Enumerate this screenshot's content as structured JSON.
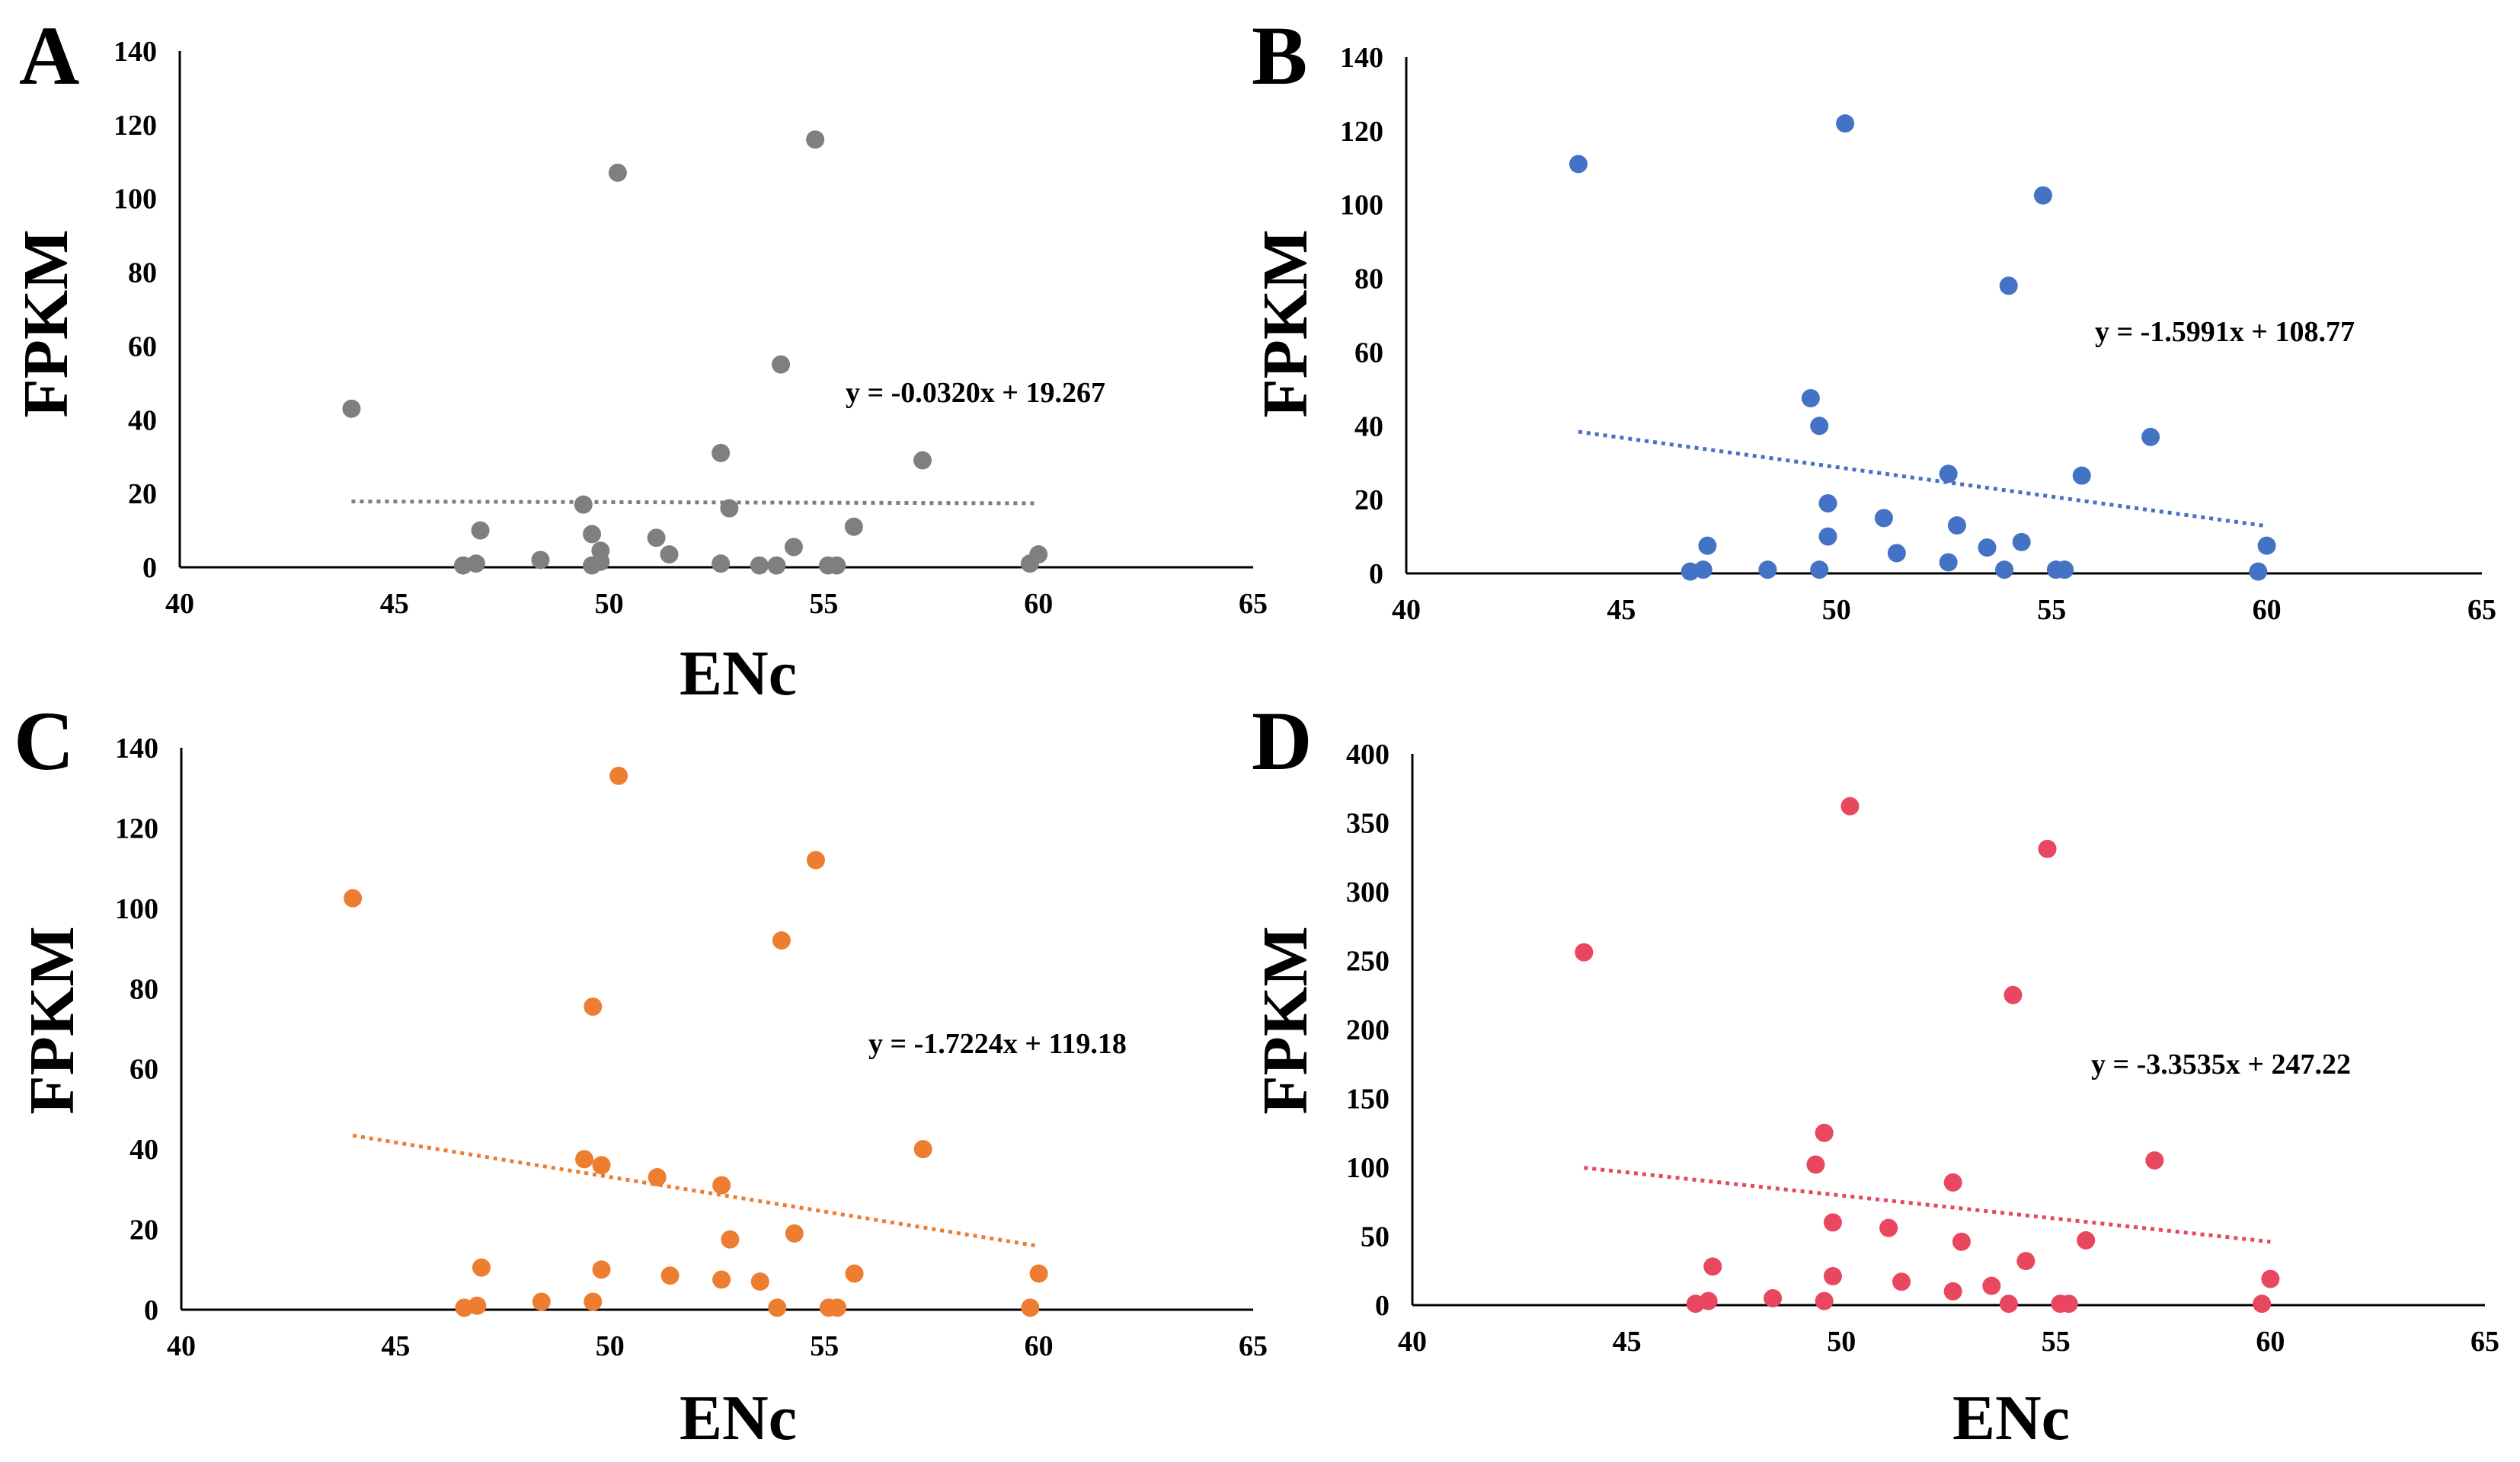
{
  "chart_data": [
    {
      "type": "scatter",
      "panel": "A",
      "color": "#7f7f7f",
      "xlabel": "ENc",
      "ylabel": "FPKM",
      "xlim": [
        40,
        65
      ],
      "ylim": [
        0,
        140
      ],
      "xticks": [
        40,
        45,
        50,
        55,
        60,
        65
      ],
      "yticks": [
        0,
        20,
        40,
        60,
        80,
        100,
        120,
        140
      ],
      "equation": "y = -0.0320x + 19.267",
      "trendline": {
        "slope": -0.032,
        "intercept": 19.267,
        "x_range": [
          44,
          60
        ]
      },
      "x": [
        44,
        46.6,
        46.9,
        47,
        48.4,
        49.4,
        49.6,
        49.6,
        49.8,
        49.8,
        50.2,
        51.1,
        51.4,
        52.6,
        52.6,
        52.8,
        53.5,
        53.9,
        54,
        54.3,
        54.8,
        55.1,
        55.3,
        55.7,
        57.3,
        59.8,
        60
      ],
      "y": [
        43,
        0.5,
        1,
        10,
        2,
        17,
        0.5,
        9,
        1.5,
        4.5,
        107,
        8,
        3.5,
        31,
        1,
        16,
        0.5,
        0.5,
        55,
        5.5,
        116,
        0.5,
        0.5,
        11,
        29,
        1,
        3.5
      ]
    },
    {
      "type": "scatter",
      "panel": "B",
      "color": "#4472c4",
      "xlabel": "ENc",
      "ylabel": "FPKM",
      "xlim": [
        40,
        65
      ],
      "ylim": [
        0,
        140
      ],
      "xticks": [
        40,
        45,
        50,
        55,
        60,
        65
      ],
      "yticks": [
        0,
        20,
        40,
        60,
        80,
        100,
        120,
        140
      ],
      "equation": "y = -1.5991x + 108.77",
      "trendline": {
        "slope": -1.5991,
        "intercept": 108.77,
        "x_range": [
          44,
          60
        ]
      },
      "x": [
        44,
        46.6,
        46.9,
        47,
        48.4,
        49.4,
        49.6,
        49.6,
        49.8,
        49.8,
        50.2,
        51.1,
        51.4,
        52.6,
        52.6,
        52.8,
        53.5,
        53.9,
        54,
        54.3,
        54.8,
        55.1,
        55.3,
        55.7,
        57.3,
        59.8,
        60
      ],
      "y": [
        111,
        0.5,
        1,
        7.5,
        1,
        47.5,
        1,
        40,
        19,
        10,
        122,
        15,
        5.5,
        27,
        3,
        13,
        7,
        1,
        78,
        8.5,
        102.5,
        1,
        1,
        26.5,
        37,
        0.5,
        7.5
      ]
    },
    {
      "type": "scatter",
      "panel": "C",
      "color": "#ed7d31",
      "xlabel": "ENc",
      "ylabel": "FPKM",
      "xlim": [
        40,
        65
      ],
      "ylim": [
        0,
        140
      ],
      "xticks": [
        40,
        45,
        50,
        55,
        60,
        65
      ],
      "yticks": [
        0,
        20,
        40,
        60,
        80,
        100,
        120,
        140
      ],
      "equation": "y = -1.7224x + 119.18",
      "trendline": {
        "slope": -1.7224,
        "intercept": 119.18,
        "x_range": [
          44,
          60
        ]
      },
      "x": [
        44,
        46.6,
        46.9,
        47,
        48.4,
        49.4,
        49.6,
        49.6,
        49.8,
        49.8,
        50.2,
        51.1,
        51.4,
        52.6,
        52.6,
        52.8,
        53.5,
        53.9,
        54,
        54.3,
        54.8,
        55.1,
        55.3,
        55.7,
        57.3,
        59.8,
        60
      ],
      "y": [
        102.5,
        0.5,
        1,
        10.5,
        2,
        37.5,
        2,
        75.5,
        10,
        36,
        133,
        33,
        8.5,
        31,
        7.5,
        17.5,
        7,
        0.5,
        92,
        19,
        112,
        0.5,
        0.5,
        9,
        40,
        0.5,
        9
      ]
    },
    {
      "type": "scatter",
      "panel": "D",
      "color": "#e8475f",
      "xlabel": "ENc",
      "ylabel": "FPKM",
      "xlim": [
        40,
        65
      ],
      "ylim": [
        0,
        400
      ],
      "xticks": [
        40,
        45,
        50,
        55,
        60,
        65
      ],
      "yticks": [
        0,
        50,
        100,
        150,
        200,
        250,
        300,
        350,
        400
      ],
      "equation": "y = -3.3535x + 247.22",
      "trendline": {
        "slope": -3.3535,
        "intercept": 247.22,
        "x_range": [
          44,
          60
        ]
      },
      "x": [
        44,
        46.6,
        46.9,
        47,
        48.4,
        49.4,
        49.6,
        49.6,
        49.8,
        49.8,
        50.2,
        51.1,
        51.4,
        52.6,
        52.6,
        52.8,
        53.5,
        53.9,
        54,
        54.3,
        54.8,
        55.1,
        55.3,
        55.7,
        57.3,
        59.8,
        60
      ],
      "y": [
        256,
        1,
        3,
        28,
        5,
        102,
        3,
        125,
        60,
        21,
        362,
        56,
        17,
        89,
        10,
        46,
        14,
        1,
        225,
        32,
        331,
        1,
        1,
        47,
        105,
        1,
        19
      ]
    }
  ]
}
